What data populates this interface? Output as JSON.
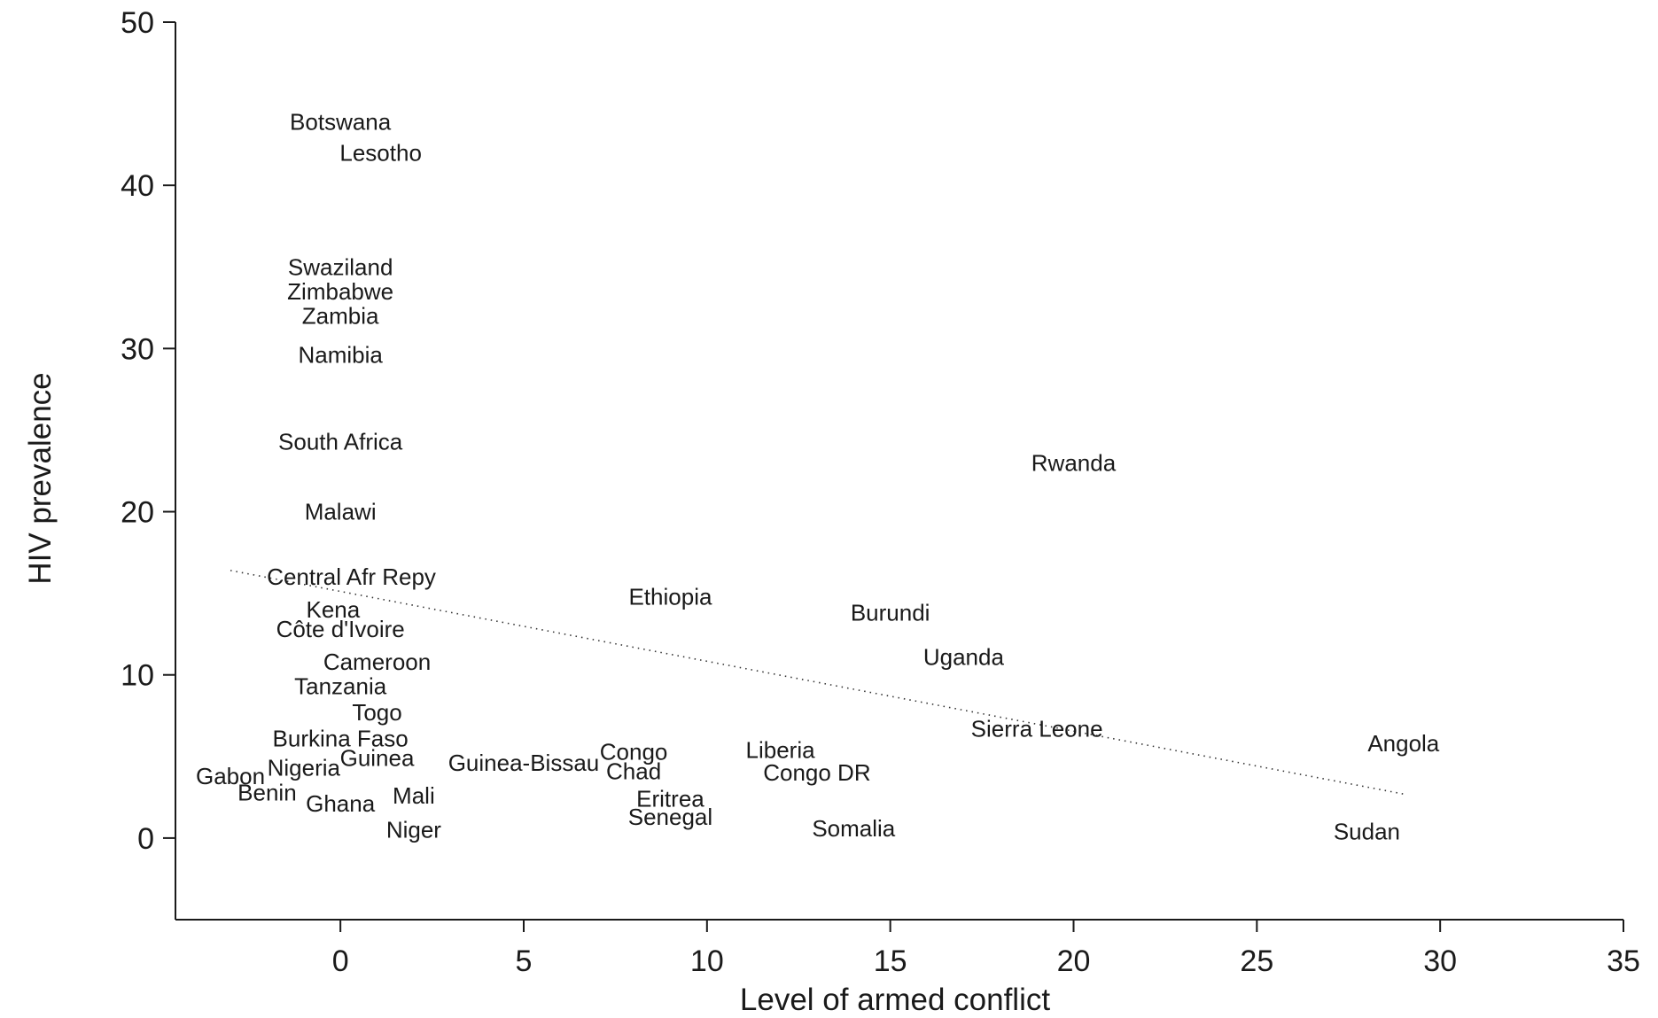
{
  "chart_data": {
    "type": "scatter",
    "title": "",
    "xlabel": "Level of armed conflict",
    "ylabel": "HIV prevalence",
    "xlim": [
      -4.5,
      35
    ],
    "ylim": [
      -5,
      50
    ],
    "x_ticks": [
      0,
      5,
      10,
      15,
      20,
      25,
      30,
      35
    ],
    "y_ticks": [
      0,
      10,
      20,
      30,
      40,
      50
    ],
    "grid": false,
    "legend": "none",
    "marker": "country name text",
    "points": [
      {
        "label": "Botswana",
        "x": 0.0,
        "y": 43.9
      },
      {
        "label": "Lesotho",
        "x": 1.1,
        "y": 42.0
      },
      {
        "label": "Swaziland",
        "x": 0.0,
        "y": 35.0
      },
      {
        "label": "Zimbabwe",
        "x": 0.0,
        "y": 33.5
      },
      {
        "label": "Zambia",
        "x": 0.0,
        "y": 32.0
      },
      {
        "label": "Namibia",
        "x": 0.0,
        "y": 29.6
      },
      {
        "label": "South Africa",
        "x": 0.0,
        "y": 24.3
      },
      {
        "label": "Malawi",
        "x": 0.0,
        "y": 20.0
      },
      {
        "label": "Rwanda",
        "x": 20.0,
        "y": 23.0
      },
      {
        "label": "Central Afr Repy",
        "x": 0.3,
        "y": 16.0
      },
      {
        "label": "Ethiopia",
        "x": 9.0,
        "y": 14.8
      },
      {
        "label": "Kena",
        "x": -0.2,
        "y": 14.0
      },
      {
        "label": "Burundi",
        "x": 15.0,
        "y": 13.8
      },
      {
        "label": "Côte d'Ivoire",
        "x": 0.0,
        "y": 12.8
      },
      {
        "label": "Uganda",
        "x": 17.0,
        "y": 11.1
      },
      {
        "label": "Cameroon",
        "x": 1.0,
        "y": 10.8
      },
      {
        "label": "Tanzania",
        "x": 0.0,
        "y": 9.3
      },
      {
        "label": "Togo",
        "x": 1.0,
        "y": 7.7
      },
      {
        "label": "Sierra Leone",
        "x": 19.0,
        "y": 6.7
      },
      {
        "label": "Burkina Faso",
        "x": 0.0,
        "y": 6.1
      },
      {
        "label": "Angola",
        "x": 29.0,
        "y": 5.8
      },
      {
        "label": "Congo",
        "x": 8.0,
        "y": 5.3
      },
      {
        "label": "Liberia",
        "x": 12.0,
        "y": 5.4
      },
      {
        "label": "Guinea",
        "x": 1.0,
        "y": 4.9
      },
      {
        "label": "Guinea-Bissau",
        "x": 5.0,
        "y": 4.6
      },
      {
        "label": "Nigeria",
        "x": -1.0,
        "y": 4.3
      },
      {
        "label": "Chad",
        "x": 8.0,
        "y": 4.1
      },
      {
        "label": "Congo DR",
        "x": 13.0,
        "y": 4.0
      },
      {
        "label": "Gabon",
        "x": -3.0,
        "y": 3.8
      },
      {
        "label": "Benin",
        "x": -2.0,
        "y": 2.8
      },
      {
        "label": "Mali",
        "x": 2.0,
        "y": 2.6
      },
      {
        "label": "Eritrea",
        "x": 9.0,
        "y": 2.4
      },
      {
        "label": "Ghana",
        "x": 0.0,
        "y": 2.1
      },
      {
        "label": "Senegal",
        "x": 9.0,
        "y": 1.3
      },
      {
        "label": "Somalia",
        "x": 14.0,
        "y": 0.6
      },
      {
        "label": "Sudan",
        "x": 28.0,
        "y": 0.4
      },
      {
        "label": "Niger",
        "x": 2.0,
        "y": 0.5
      }
    ],
    "trend_line": {
      "style": "dotted",
      "x": [
        -3.0,
        29.0
      ],
      "y": [
        16.4,
        2.7
      ]
    }
  }
}
